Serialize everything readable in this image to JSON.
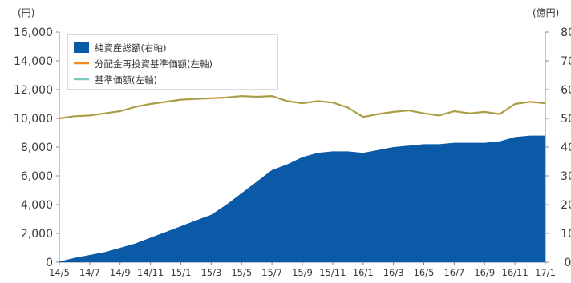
{
  "chart_data": {
    "type": "area",
    "left_axis": {
      "unit": "(円)",
      "ylim": [
        0,
        16000
      ],
      "ticks": [
        "0",
        "2,000",
        "4,000",
        "6,000",
        "8,000",
        "10,000",
        "12,000",
        "14,000",
        "16,000"
      ]
    },
    "right_axis": {
      "unit": "(億円)",
      "ylim": [
        0,
        80
      ],
      "ticks": [
        "0",
        "10",
        "20",
        "30",
        "40",
        "50",
        "60",
        "70",
        "80"
      ]
    },
    "x_ticks": [
      "14/5",
      "14/7",
      "14/9",
      "14/11",
      "15/1",
      "15/3",
      "15/5",
      "15/7",
      "15/9",
      "15/11",
      "16/1",
      "16/3",
      "16/5",
      "16/7",
      "16/9",
      "16/11",
      "17/1"
    ],
    "x": [
      "14/5",
      "14/6",
      "14/7",
      "14/8",
      "14/9",
      "14/10",
      "14/11",
      "14/12",
      "15/1",
      "15/2",
      "15/3",
      "15/4",
      "15/5",
      "15/6",
      "15/7",
      "15/8",
      "15/9",
      "15/10",
      "15/11",
      "15/12",
      "16/1",
      "16/2",
      "16/3",
      "16/4",
      "16/5",
      "16/6",
      "16/7",
      "16/8",
      "16/9",
      "16/10",
      "16/11",
      "16/12",
      "17/1"
    ],
    "series": [
      {
        "name": "純資産総額(右軸)",
        "kind": "area",
        "axis": "right",
        "color": "#0a5aa8",
        "values": [
          0.2,
          1.5,
          2.5,
          3.5,
          5.0,
          6.5,
          8.5,
          10.5,
          12.5,
          14.5,
          16.5,
          20.0,
          24.0,
          28.0,
          32.0,
          34.0,
          36.5,
          38.0,
          38.5,
          38.5,
          38.0,
          39.0,
          40.0,
          40.5,
          41.0,
          41.0,
          41.5,
          41.5,
          41.5,
          42.0,
          43.5,
          44.0,
          44.0
        ]
      },
      {
        "name": "分配金再投資基準価額(左軸)",
        "kind": "line",
        "axis": "left",
        "color": "#f08c1e",
        "values": [
          10000,
          10150,
          10200,
          10350,
          10500,
          10800,
          11000,
          11150,
          11300,
          11350,
          11400,
          11450,
          11550,
          11500,
          11550,
          11200,
          11050,
          11200,
          11100,
          10750,
          10100,
          10300,
          10450,
          10550,
          10350,
          10200,
          10500,
          10350,
          10450,
          10300,
          11000,
          11150,
          11050
        ]
      },
      {
        "name": "基準価額(左軸)",
        "kind": "line",
        "axis": "left",
        "color": "#7cc7c0",
        "values": [
          10000,
          10150,
          10200,
          10350,
          10500,
          10800,
          11000,
          11150,
          11300,
          11350,
          11400,
          11450,
          11550,
          11500,
          11550,
          11200,
          11050,
          11200,
          11100,
          10750,
          10100,
          10300,
          10450,
          10550,
          10350,
          10200,
          10500,
          10350,
          10450,
          10300,
          11000,
          11150,
          11050
        ]
      }
    ],
    "grid": false,
    "legend_position": "top-left"
  }
}
